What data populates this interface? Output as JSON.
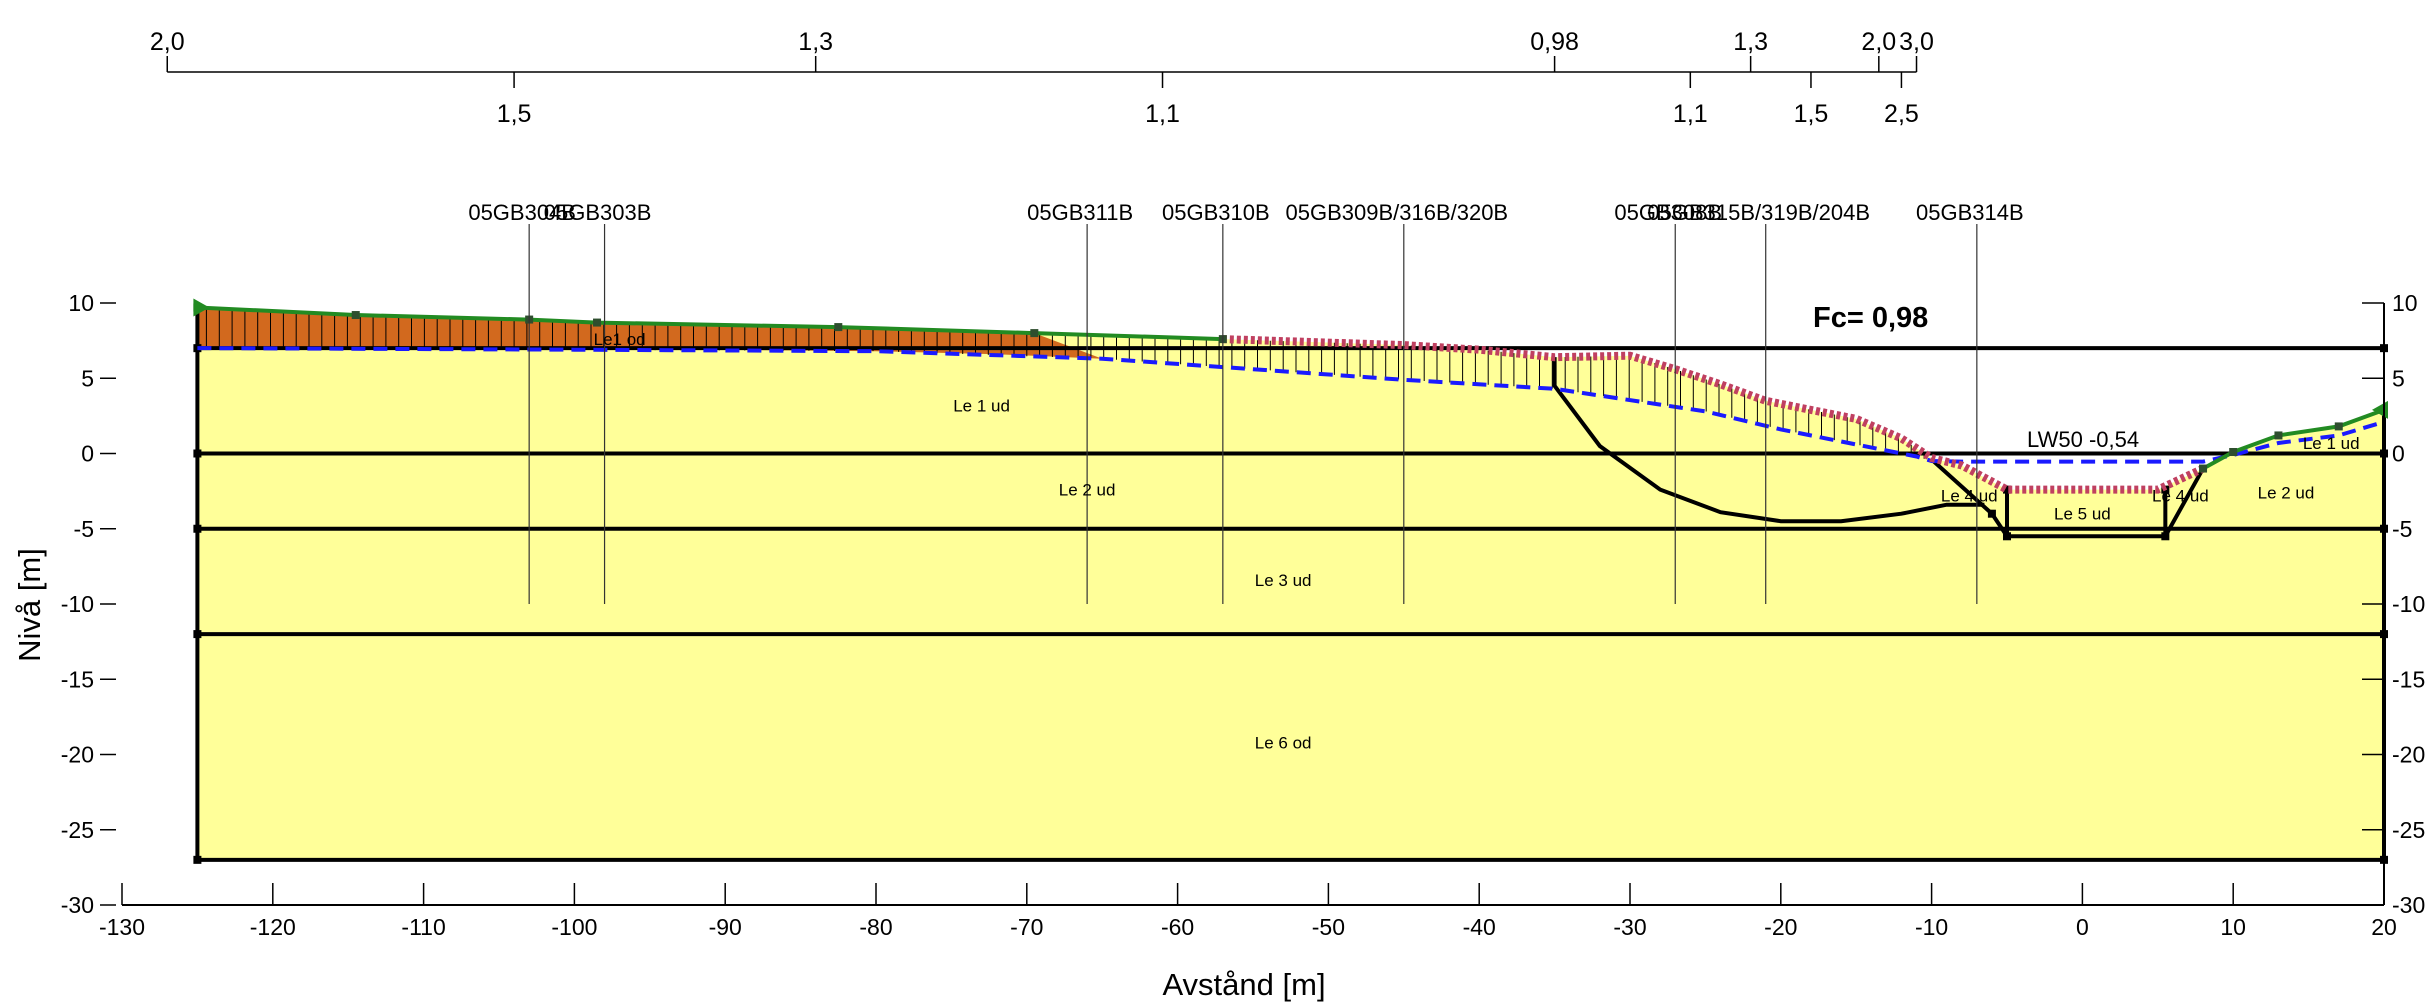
{
  "chart_data": {
    "type": "line",
    "title": "",
    "xlabel": "Avstånd [m]",
    "ylabel": "Nivå [m]",
    "xlim": [
      -130,
      20
    ],
    "ylim": [
      -30,
      10
    ],
    "x_ticks": [
      "-130",
      "-120",
      "-110",
      "-100",
      "-90",
      "-80",
      "-70",
      "-60",
      "-50",
      "-40",
      "-30",
      "-20",
      "-10",
      "0",
      "10",
      "20"
    ],
    "y_ticks": [
      "10",
      "5",
      "0",
      "-5",
      "-10",
      "-15",
      "-20",
      "-25",
      "-30"
    ],
    "colors": {
      "soil": "#ffff99",
      "top_layer": "#d2691e",
      "terrain": "#228b22",
      "slip_points": "#c04060",
      "water": "#1a1aff",
      "structure": "#000000"
    },
    "safety_factor": "Fc= 0,98",
    "water_label": "LW50 -0,54",
    "ground_surface": {
      "x": [
        -125,
        -114.5,
        -103,
        -98.5,
        -82.5,
        -69.5,
        -57,
        -45,
        -40,
        -35,
        -30,
        -27,
        -24,
        -21,
        -18,
        -15,
        -12,
        -10,
        -8,
        -5,
        0,
        5,
        8,
        10,
        13,
        17,
        20
      ],
      "y": [
        9.7,
        9.2,
        8.9,
        8.7,
        8.4,
        8.0,
        7.6,
        7.2,
        6.9,
        6.4,
        6.5,
        5.6,
        4.6,
        3.5,
        2.9,
        2.3,
        1.0,
        -0.3,
        -0.8,
        -2.4,
        -2.4,
        -2.4,
        -1.0,
        0.1,
        1.2,
        1.8,
        2.9
      ]
    },
    "top_layer_bottom": {
      "x": [
        -125,
        -100,
        -90,
        -80,
        -72,
        -65
      ],
      "y": [
        7.0,
        6.95,
        6.9,
        6.8,
        6.6,
        6.3
      ]
    },
    "water_table": {
      "x": [
        -125,
        -100,
        -80,
        -65,
        -55,
        -45,
        -35,
        -25,
        -20,
        -15,
        -11,
        -10,
        -8,
        -5,
        0,
        5,
        8,
        10,
        13,
        17,
        20
      ],
      "y": [
        7.0,
        6.9,
        6.8,
        6.3,
        5.6,
        4.9,
        4.3,
        2.8,
        1.6,
        0.6,
        -0.2,
        -0.5,
        -0.54,
        -0.54,
        -0.54,
        -0.54,
        -0.54,
        -0.1,
        0.7,
        1.2,
        2.1
      ]
    },
    "slip_surface": {
      "x": [
        -35,
        -32,
        -28,
        -24,
        -20,
        -16,
        -12,
        -9,
        -7,
        -6.5
      ],
      "y": [
        4.5,
        0.5,
        -2.4,
        -3.9,
        -4.5,
        -4.5,
        -4.0,
        -3.4,
        -3.4,
        -3.4
      ]
    },
    "layer_boundaries": [
      7.0,
      0,
      -5,
      -12,
      -27
    ],
    "model_x_range": [
      -125,
      20
    ],
    "channel_bottom": {
      "x": [
        -5,
        5.5
      ],
      "y": -5.5
    },
    "layer_labels": [
      {
        "text": "Le1 od",
        "x": -97,
        "y": 7.6
      },
      {
        "text": "Le 1 ud",
        "x": -73,
        "y": 3.2
      },
      {
        "text": "Le 2 ud",
        "x": -66,
        "y": -2.4
      },
      {
        "text": "Le 3 ud",
        "x": -53,
        "y": -8.4
      },
      {
        "text": "Le 6 od",
        "x": -53,
        "y": -19.2
      },
      {
        "text": "Le 4 ud",
        "x": -7.5,
        "y": -2.8
      },
      {
        "text": "Le 5 ud",
        "x": 0,
        "y": -4.0
      },
      {
        "text": "Le 4 ud",
        "x": 6.5,
        "y": -2.8
      },
      {
        "text": "Le 2 ud",
        "x": 13.5,
        "y": -2.6
      },
      {
        "text": "Le 1 ud",
        "x": 16.5,
        "y": 0.7
      }
    ],
    "boreholes": [
      {
        "name": "05GB304B",
        "x": -103,
        "top": 8.9
      },
      {
        "name": "05GB303B",
        "x": -98,
        "top": 8.7
      },
      {
        "name": "05GB311B",
        "x": -66,
        "top": 7.8
      },
      {
        "name": "05GB310B",
        "x": -57,
        "top": 7.5
      },
      {
        "name": "05GB309B/316B/320B",
        "x": -45,
        "top": 7.2
      },
      {
        "name": "05GB308B",
        "x": -27,
        "top": 6.0
      },
      {
        "name": "05GB315B/319B/204B",
        "x": -21,
        "top": 3.5
      },
      {
        "name": "05GB314B",
        "x": -7,
        "top": -1.0
      }
    ],
    "borehole_bottom": -10,
    "safety_factor_scale": {
      "upper": [
        {
          "label": "2,0",
          "x": -127
        },
        {
          "label": "1,3",
          "x": -84
        },
        {
          "label": "0,98",
          "x": -35
        },
        {
          "label": "1,3",
          "x": -22
        },
        {
          "label": "2,0",
          "x": -13.5
        },
        {
          "label": "3,0",
          "x": -11
        }
      ],
      "lower": [
        {
          "label": "1,5",
          "x": -104
        },
        {
          "label": "1,1",
          "x": -61
        },
        {
          "label": "1,1",
          "x": -26
        },
        {
          "label": "1,5",
          "x": -18
        },
        {
          "label": "2,5",
          "x": -12
        }
      ]
    }
  }
}
